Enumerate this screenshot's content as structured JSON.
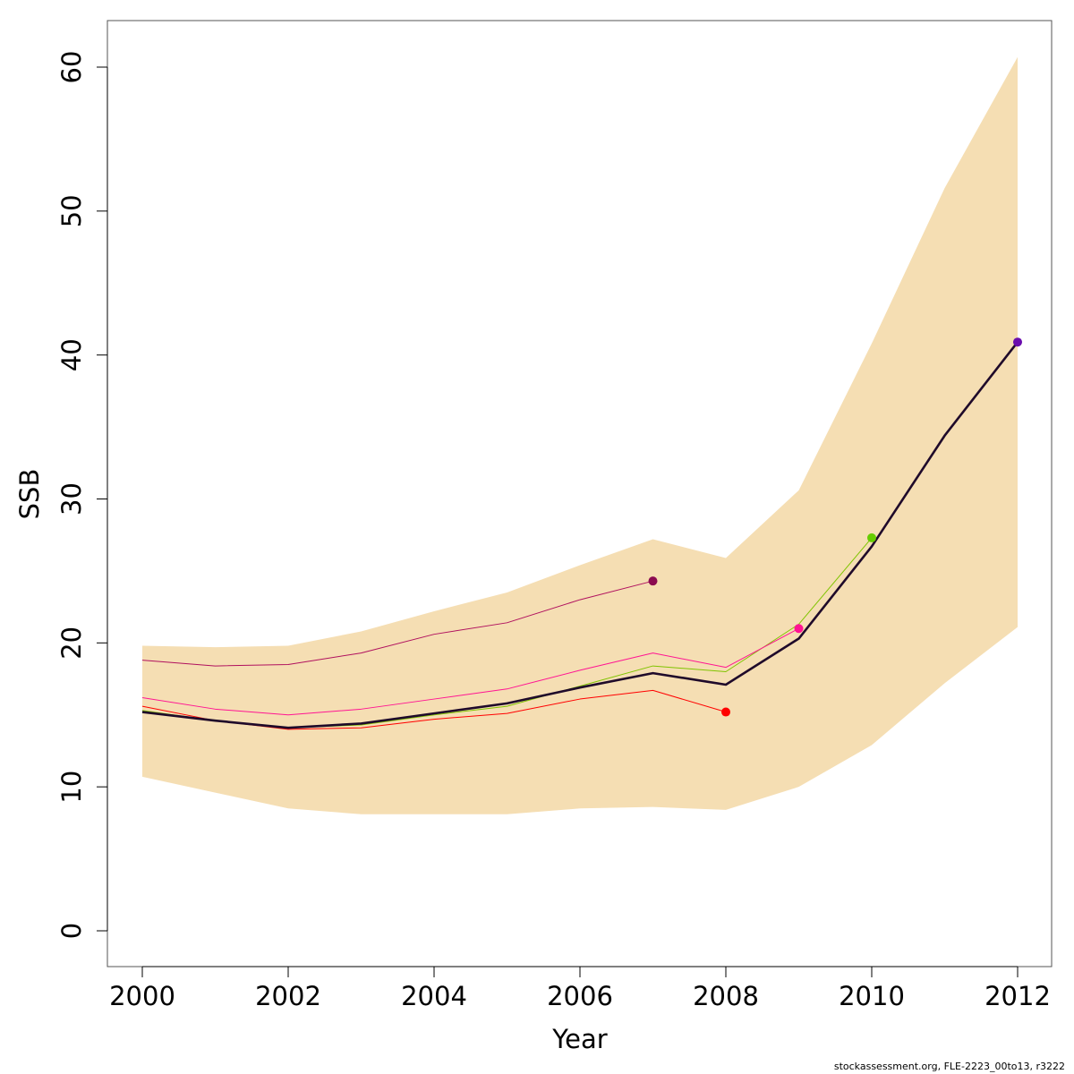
{
  "chart_data": {
    "type": "line",
    "xlabel": "Year",
    "ylabel": "SSB",
    "xlim": [
      2000,
      2012
    ],
    "ylim": [
      0,
      60
    ],
    "x_ticks": [
      "2000",
      "2002",
      "2004",
      "2006",
      "2008",
      "2010",
      "2012"
    ],
    "y_ticks": [
      "0",
      "10",
      "20",
      "30",
      "40",
      "50",
      "60"
    ],
    "grid": false,
    "legend": "none",
    "band": {
      "color": "#f5deb3",
      "x": [
        2000,
        2001,
        2002,
        2003,
        2004,
        2005,
        2006,
        2007,
        2008,
        2009,
        2010,
        2011,
        2012
      ],
      "upper": [
        19.8,
        19.7,
        19.8,
        20.8,
        22.2,
        23.5,
        25.4,
        27.2,
        25.9,
        30.6,
        40.8,
        51.6,
        60.7
      ],
      "lower": [
        10.7,
        9.6,
        8.5,
        8.1,
        8.1,
        8.1,
        8.5,
        8.6,
        8.4,
        10.0,
        12.9,
        17.2,
        21.1
      ]
    },
    "series": [
      {
        "color": "#1f0a2a",
        "width": 2.6,
        "end_point_color": "#6a0dad",
        "x": [
          2000,
          2001,
          2002,
          2003,
          2004,
          2005,
          2006,
          2007,
          2008,
          2009,
          2010,
          2011,
          2012
        ],
        "values": [
          15.2,
          14.6,
          14.1,
          14.4,
          15.1,
          15.8,
          16.9,
          17.9,
          17.1,
          20.3,
          26.7,
          34.4,
          40.9
        ]
      },
      {
        "color": "#7fc400",
        "width": 1,
        "end_point_color": "#66cc00",
        "x": [
          2000,
          2001,
          2002,
          2003,
          2004,
          2005,
          2006,
          2007,
          2008,
          2009,
          2010
        ],
        "values": [
          15.3,
          14.6,
          14.1,
          14.3,
          15.0,
          15.6,
          17.0,
          18.4,
          18.0,
          21.3,
          27.3
        ]
      },
      {
        "color": "#ff1493",
        "width": 1,
        "end_point_color": "#ff1493",
        "x": [
          2000,
          2001,
          2002,
          2003,
          2004,
          2005,
          2006,
          2007,
          2008,
          2009
        ],
        "values": [
          16.2,
          15.4,
          15.0,
          15.4,
          16.1,
          16.8,
          18.1,
          19.3,
          18.3,
          21.0
        ]
      },
      {
        "color": "#ff0000",
        "width": 1,
        "end_point_color": "#ff0000",
        "x": [
          2000,
          2001,
          2002,
          2003,
          2004,
          2005,
          2006,
          2007,
          2008
        ],
        "values": [
          15.6,
          14.6,
          14.0,
          14.1,
          14.7,
          15.1,
          16.1,
          16.7,
          15.2
        ]
      },
      {
        "color": "#b0105e",
        "width": 1,
        "end_point_color": "#8b0a50",
        "x": [
          2000,
          2001,
          2002,
          2003,
          2004,
          2005,
          2006,
          2007
        ],
        "values": [
          18.8,
          18.4,
          18.5,
          19.3,
          20.6,
          21.4,
          23.0,
          24.3
        ]
      }
    ]
  },
  "footer": {
    "credit": "stockassessment.org, FLE-2223_00to13, r3222"
  }
}
